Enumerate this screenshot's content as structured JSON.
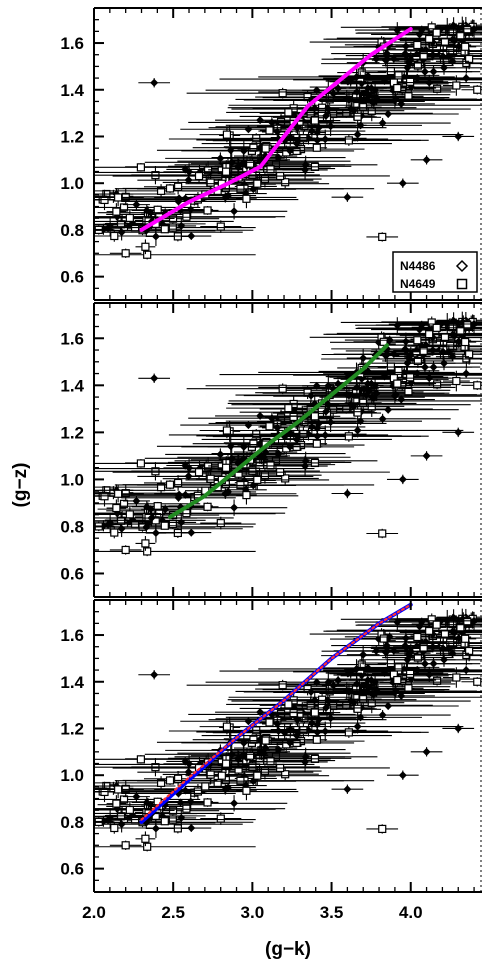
{
  "figure": {
    "xlabel": "(g−k)",
    "ylabel": "(g−z)"
  },
  "legend": {
    "entries": [
      {
        "label": "N4486",
        "marker": "diamond"
      },
      {
        "label": "N4649",
        "marker": "square"
      }
    ]
  },
  "chart_data": [
    {
      "type": "scatter",
      "panel": "top",
      "xlim": [
        2.0,
        4.45
      ],
      "ylim": [
        0.5,
        1.75
      ],
      "xticks": [
        2.0,
        2.5,
        3.0,
        3.5,
        4.0
      ],
      "yticks": [
        0.6,
        0.8,
        1.0,
        1.2,
        1.4,
        1.6
      ],
      "show_x_tick_labels": false,
      "curves": [
        {
          "color": "#ff00ff",
          "style": "solid",
          "x": [
            2.3,
            2.6,
            2.85,
            3.05,
            3.2,
            3.35,
            3.55,
            3.75,
            4.0
          ],
          "y": [
            0.8,
            0.92,
            1.0,
            1.07,
            1.2,
            1.33,
            1.44,
            1.55,
            1.66
          ]
        }
      ]
    },
    {
      "type": "scatter",
      "panel": "middle",
      "xlim": [
        2.0,
        4.45
      ],
      "ylim": [
        0.5,
        1.75
      ],
      "xticks": [
        2.0,
        2.5,
        3.0,
        3.5,
        4.0
      ],
      "yticks": [
        0.6,
        0.8,
        1.0,
        1.2,
        1.4,
        1.6
      ],
      "show_x_tick_labels": false,
      "curves": [
        {
          "color": "#228b22",
          "style": "solid",
          "x": [
            2.48,
            2.7,
            2.9,
            3.1,
            3.3,
            3.5,
            3.7,
            3.85
          ],
          "y": [
            0.84,
            0.93,
            1.04,
            1.15,
            1.25,
            1.36,
            1.47,
            1.57
          ]
        }
      ]
    },
    {
      "type": "scatter",
      "panel": "bottom",
      "xlim": [
        2.0,
        4.45
      ],
      "ylim": [
        0.5,
        1.75
      ],
      "xticks": [
        2.0,
        2.5,
        3.0,
        3.5,
        4.0
      ],
      "yticks": [
        0.6,
        0.8,
        1.0,
        1.2,
        1.4,
        1.6
      ],
      "xtick_labels": [
        "2.0",
        "2.5",
        "3.0",
        "3.5",
        "4.0"
      ],
      "show_x_tick_labels": true,
      "curves": [
        {
          "color": "#0000ff",
          "style": "solid",
          "x": [
            2.3,
            2.6,
            2.9,
            3.2,
            3.5,
            3.8,
            4.0
          ],
          "y": [
            0.8,
            0.98,
            1.16,
            1.32,
            1.5,
            1.65,
            1.73
          ]
        },
        {
          "color": "#ff3030",
          "style": "dotted",
          "x": [
            2.3,
            2.6,
            2.9,
            3.2,
            3.5,
            3.8,
            4.0
          ],
          "y": [
            0.81,
            0.99,
            1.16,
            1.32,
            1.5,
            1.65,
            1.73
          ]
        }
      ]
    }
  ]
}
